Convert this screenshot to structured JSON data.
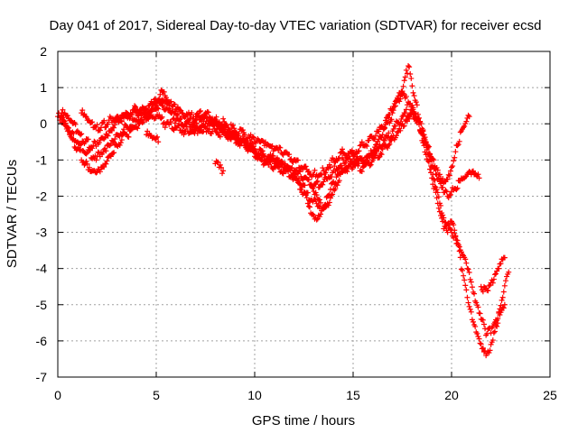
{
  "chart_data": {
    "type": "scatter",
    "title": "Day 041 of 2017, Sidereal Day-to-day VTEC variation (SDTVAR) for receiver ecsd",
    "xlabel": "GPS time / hours",
    "ylabel": "SDTVAR / TECUs",
    "xlim": [
      0,
      25
    ],
    "ylim": [
      -7,
      2
    ],
    "xticks": [
      "0",
      "5",
      "10",
      "15",
      "20",
      "25"
    ],
    "yticks": [
      "2",
      "1",
      "0",
      "-1",
      "-2",
      "-3",
      "-4",
      "-5",
      "-6",
      "-7"
    ],
    "grid": true,
    "marker": "+",
    "colors": {
      "series": "#ff0000",
      "frame": "#000000",
      "grid": "#a0a0a0"
    },
    "series": [
      {
        "x": [
          0.0,
          0.3,
          0.6,
          1.0,
          1.4,
          1.8,
          2.2,
          2.6,
          3.0,
          3.5,
          4.0,
          4.5,
          5.0,
          5.5,
          6.0,
          6.5,
          7.0,
          7.5,
          8.0,
          8.5,
          9.0,
          9.5,
          10.0,
          10.5,
          11.0,
          11.5,
          12.0,
          12.5,
          12.8,
          13.1,
          13.4,
          13.7,
          14.0,
          14.5,
          15.0,
          15.5,
          16.0,
          16.5,
          17.0,
          17.5,
          18.0,
          18.3,
          18.6,
          19.0,
          19.3,
          19.6,
          19.8,
          20.0,
          20.3,
          20.6,
          21.0,
          21.3,
          21.6,
          21.8,
          22.0,
          22.3,
          22.6,
          22.9
        ],
        "y": [
          0.2,
          0.1,
          -0.3,
          -0.7,
          -1.1,
          -1.3,
          -1.2,
          -0.9,
          -0.6,
          -0.3,
          -0.1,
          0.1,
          0.2,
          0.0,
          -0.1,
          -0.2,
          -0.2,
          -0.1,
          -0.2,
          -0.3,
          -0.4,
          -0.6,
          -0.9,
          -1.1,
          -1.2,
          -1.3,
          -1.4,
          -1.7,
          -2.3,
          -2.6,
          -2.4,
          -2.0,
          -1.6,
          -1.3,
          -1.2,
          -1.2,
          -1.0,
          -0.7,
          -0.4,
          0.0,
          0.3,
          0.1,
          -0.6,
          -1.5,
          -2.2,
          -2.9,
          -3.0,
          -2.7,
          -3.3,
          -4.2,
          -5.2,
          -5.8,
          -6.2,
          -6.35,
          -6.1,
          -5.6,
          -4.8,
          -4.1
        ]
      },
      {
        "x": [
          0.1,
          0.5,
          1.0,
          1.5,
          2.0,
          2.5,
          3.0,
          3.5,
          4.0,
          4.5,
          5.0,
          5.3,
          5.8,
          6.5,
          7.0,
          7.5,
          8.0,
          8.5,
          9.0,
          9.5,
          10.0,
          10.5,
          11.0,
          11.5,
          12.0,
          12.5,
          13.0,
          13.3,
          13.7,
          14.0,
          14.5,
          15.0,
          15.5,
          16.0,
          16.5,
          17.0,
          17.5,
          18.0,
          18.3,
          18.7,
          19.0,
          19.3,
          19.6,
          20.0,
          20.4,
          20.8,
          21.2,
          21.5,
          21.8,
          22.1,
          22.4,
          22.7
        ],
        "y": [
          0.1,
          -0.2,
          -0.5,
          -0.8,
          -0.9,
          -0.6,
          -0.3,
          -0.1,
          0.1,
          0.2,
          0.4,
          0.9,
          0.3,
          0.0,
          0.1,
          0.2,
          0.0,
          -0.2,
          -0.4,
          -0.6,
          -0.8,
          -1.0,
          -1.1,
          -1.2,
          -1.5,
          -1.9,
          -2.1,
          -2.3,
          -2.2,
          -1.8,
          -1.3,
          -1.1,
          -1.0,
          -0.9,
          -0.6,
          -0.2,
          0.2,
          0.4,
          0.1,
          -0.5,
          -1.2,
          -1.9,
          -2.6,
          -3.0,
          -3.4,
          -4.0,
          -4.9,
          -5.4,
          -5.8,
          -5.6,
          -5.2,
          -5.0
        ]
      },
      {
        "x": [
          0.2,
          0.6,
          1.0,
          1.4,
          1.8,
          2.2,
          2.6,
          3.0,
          3.5,
          4.0,
          4.5,
          5.0,
          5.5,
          6.0,
          6.5,
          7.0,
          7.5,
          8.0,
          8.5,
          9.0,
          9.5,
          10.0,
          10.5,
          11.0,
          11.5,
          12.0,
          12.5,
          13.0,
          13.5,
          14.0,
          14.5,
          15.0,
          15.5,
          16.0,
          16.5,
          17.0,
          17.5,
          17.8,
          18.2,
          18.6,
          19.0,
          19.4,
          19.8,
          20.2,
          20.6,
          21.0,
          21.4
        ],
        "y": [
          0.3,
          0.1,
          -0.2,
          -0.5,
          -0.6,
          -0.4,
          -0.2,
          0.1,
          0.2,
          0.3,
          0.4,
          0.6,
          0.4,
          0.1,
          0.0,
          -0.1,
          0.0,
          0.1,
          0.0,
          -0.2,
          -0.3,
          -0.5,
          -0.6,
          -0.7,
          -0.8,
          -1.0,
          -1.2,
          -1.4,
          -1.3,
          -1.0,
          -0.8,
          -0.9,
          -1.1,
          -0.8,
          -0.3,
          0.3,
          0.9,
          1.6,
          0.6,
          -0.3,
          -1.0,
          -1.6,
          -2.0,
          -1.8,
          -1.5,
          -1.4,
          -1.5
        ]
      },
      {
        "x": [
          1.2,
          1.5,
          1.8,
          2.2,
          2.6,
          3.0,
          3.5,
          4.0,
          4.5,
          5.0,
          5.5,
          6.0,
          6.5,
          7.0,
          7.5,
          8.0,
          8.5,
          9.0,
          9.5,
          10.0,
          10.5,
          11.0,
          11.5,
          12.0,
          12.5,
          13.0,
          13.5,
          14.0,
          14.5,
          15.0,
          15.5,
          16.0,
          16.5,
          17.0,
          17.4,
          17.8,
          18.2,
          18.5,
          18.8,
          19.1,
          19.4,
          19.7,
          20.0,
          20.3,
          20.6,
          20.9
        ],
        "y": [
          0.3,
          0.1,
          -0.1,
          -0.1,
          0.1,
          0.2,
          0.3,
          0.4,
          0.3,
          0.5,
          0.6,
          0.4,
          0.2,
          0.2,
          0.3,
          0.1,
          -0.1,
          -0.3,
          -0.5,
          -0.7,
          -0.9,
          -1.0,
          -1.2,
          -1.3,
          -1.5,
          -1.7,
          -1.6,
          -1.3,
          -1.0,
          -0.8,
          -0.6,
          -0.4,
          -0.1,
          0.4,
          0.8,
          0.6,
          0.2,
          -0.2,
          -0.6,
          -1.0,
          -1.4,
          -1.6,
          -1.2,
          -0.6,
          -0.1,
          0.2
        ]
      },
      {
        "x": [
          4.5,
          4.8,
          5.1,
          8.0,
          8.2,
          8.4,
          12.9,
          13.1,
          13.3,
          21.5,
          21.8,
          22.1,
          22.4,
          22.7
        ],
        "y": [
          -0.3,
          -0.4,
          -0.5,
          -1.1,
          -1.2,
          -1.3,
          -1.7,
          -1.9,
          -2.1,
          -4.5,
          -4.6,
          -4.4,
          -4.0,
          -3.7
        ]
      }
    ]
  }
}
